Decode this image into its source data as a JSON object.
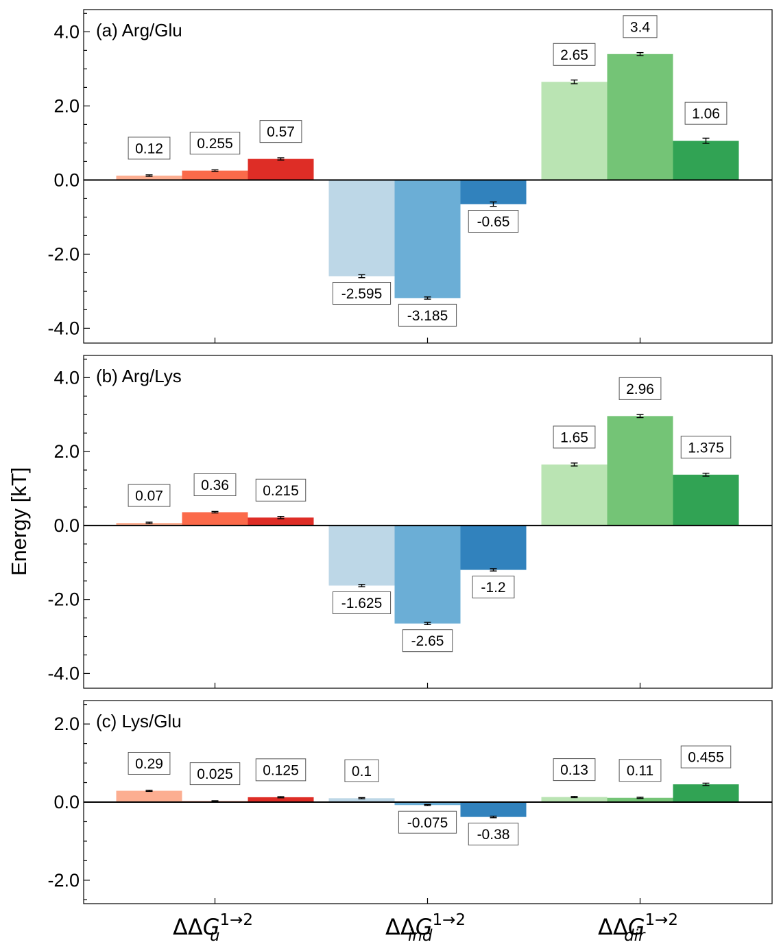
{
  "chart_data": {
    "type": "bar",
    "ylabel": "Energy [kT]",
    "categories": [
      "ΔΔG_u^{1→2}",
      "ΔΔG_ind^{1→2}",
      "ΔΔG_dir^{1→2}"
    ],
    "category_labels": [
      {
        "base": "ΔΔG",
        "sub": "u",
        "sup": "1→2"
      },
      {
        "base": "ΔΔG",
        "sub": "ind",
        "sup": "1→2"
      },
      {
        "base": "ΔΔG",
        "sub": "dir",
        "sup": "1→2"
      }
    ],
    "bars_per_category": 3,
    "colors": [
      [
        "#fcae91",
        "#fb6a4a",
        "#de2d26"
      ],
      [
        "#bdd7e7",
        "#6baed6",
        "#3182bd"
      ],
      [
        "#bae4b3",
        "#74c476",
        "#31a354"
      ]
    ],
    "panels": [
      {
        "title": "(a) Arg/Glu",
        "ylim": [
          -4.4,
          4.6
        ],
        "yticks": [
          -4.0,
          -2.0,
          0.0,
          2.0,
          4.0
        ],
        "ytick_labels": [
          "-4.0",
          "-2.0",
          "0.0",
          "2.0",
          "4.0"
        ],
        "values": [
          [
            0.12,
            0.255,
            0.57
          ],
          [
            -2.595,
            -3.185,
            -0.65
          ],
          [
            2.65,
            3.4,
            1.06
          ]
        ],
        "labels": [
          [
            "0.12",
            "0.255",
            "0.57"
          ],
          [
            "-2.595",
            "-3.185",
            "-0.65"
          ],
          [
            "2.65",
            "3.4",
            "1.06"
          ]
        ],
        "errors": [
          [
            0.02,
            0.02,
            0.03
          ],
          [
            0.04,
            0.03,
            0.06
          ],
          [
            0.05,
            0.04,
            0.07
          ]
        ]
      },
      {
        "title": "(b) Arg/Lys",
        "ylim": [
          -4.4,
          4.6
        ],
        "yticks": [
          -4.0,
          -2.0,
          0.0,
          2.0,
          4.0
        ],
        "ytick_labels": [
          "-4.0",
          "-2.0",
          "0.0",
          "2.0",
          "4.0"
        ],
        "values": [
          [
            0.07,
            0.36,
            0.215
          ],
          [
            -1.625,
            -2.65,
            -1.2
          ],
          [
            1.65,
            2.96,
            1.375
          ]
        ],
        "labels": [
          [
            "0.07",
            "0.36",
            "0.215"
          ],
          [
            "-1.625",
            "-2.65",
            "-1.2"
          ],
          [
            "1.65",
            "2.96",
            "1.375"
          ]
        ],
        "errors": [
          [
            0.02,
            0.02,
            0.03
          ],
          [
            0.03,
            0.03,
            0.03
          ],
          [
            0.04,
            0.04,
            0.04
          ]
        ]
      },
      {
        "title": "(c) Lys/Glu",
        "ylim": [
          -2.6,
          2.6
        ],
        "yticks": [
          -2.0,
          0.0,
          2.0
        ],
        "ytick_labels": [
          "-2.0",
          "0.0",
          "2.0"
        ],
        "values": [
          [
            0.29,
            0.025,
            0.125
          ],
          [
            0.1,
            -0.075,
            -0.38
          ],
          [
            0.13,
            0.11,
            0.455
          ]
        ],
        "labels": [
          [
            "0.29",
            "0.025",
            "0.125"
          ],
          [
            "0.1",
            "-0.075",
            "-0.38"
          ],
          [
            "0.13",
            "0.11",
            "0.455"
          ]
        ],
        "errors": [
          [
            0.015,
            0.01,
            0.015
          ],
          [
            0.015,
            0.015,
            0.02
          ],
          [
            0.015,
            0.015,
            0.03
          ]
        ]
      }
    ]
  }
}
